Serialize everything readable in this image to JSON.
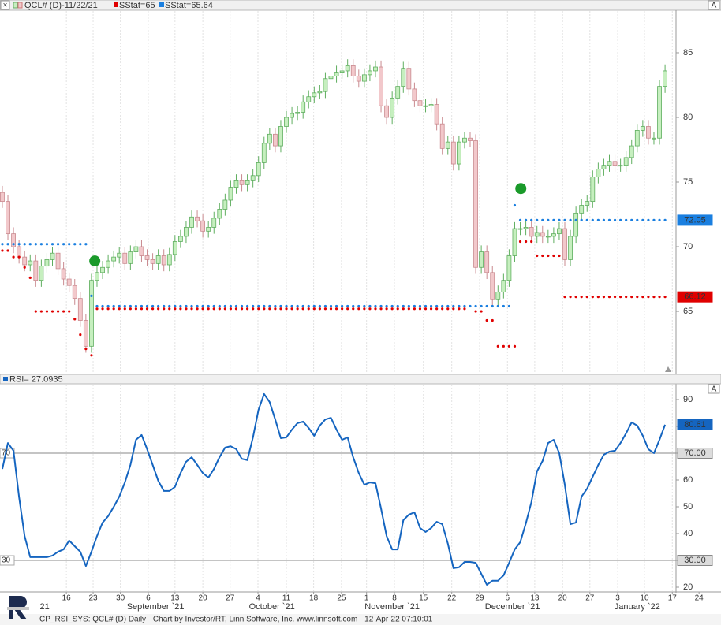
{
  "toolbar": {
    "close": "×",
    "autoscale": "A"
  },
  "footer": "CP_RSI_SYS: QCL# (D) Daily - Chart by Investor/RT, Linn Software, Inc.  www.linnsoft.com - 12-Apr-22 07:10:01",
  "chart_data": [
    {
      "type": "candlestick",
      "title": "QCL# (D)-11/22/21",
      "up_color": "#c6efbf",
      "down_color": "#f2c8cb",
      "grid": true,
      "xlim": [
        -0.42,
        120.97
      ],
      "xticks": [
        {
          "value": 11.5,
          "label": "16"
        },
        {
          "value": 16.3,
          "label": "23"
        },
        {
          "value": 21.2,
          "label": "30"
        },
        {
          "value": 26.2,
          "label": "6"
        },
        {
          "value": 31.0,
          "label": "13"
        },
        {
          "value": 36.0,
          "label": "20"
        },
        {
          "value": 40.9,
          "label": "27"
        },
        {
          "value": 45.9,
          "label": "4"
        },
        {
          "value": 51.0,
          "label": "11"
        },
        {
          "value": 55.9,
          "label": "18"
        },
        {
          "value": 60.9,
          "label": "25"
        },
        {
          "value": 65.4,
          "label": "1"
        },
        {
          "value": 70.4,
          "label": "8"
        },
        {
          "value": 75.6,
          "label": "15"
        },
        {
          "value": 80.7,
          "label": "22"
        },
        {
          "value": 85.7,
          "label": "29"
        },
        {
          "value": 90.7,
          "label": "6"
        },
        {
          "value": 95.6,
          "label": "13"
        },
        {
          "value": 100.6,
          "label": "20"
        },
        {
          "value": 105.5,
          "label": "27"
        },
        {
          "value": 110.5,
          "label": "3"
        },
        {
          "value": 115.3,
          "label": "10"
        },
        {
          "value": 120.3,
          "label": "17"
        },
        {
          "value": 125.1,
          "label": "24"
        }
      ],
      "month_labels": [
        {
          "value": 7.6,
          "label": "21"
        },
        {
          "value": 27.5,
          "label": "September `21"
        },
        {
          "value": 48.4,
          "label": "October `21"
        },
        {
          "value": 70.0,
          "label": "November `21"
        },
        {
          "value": 91.6,
          "label": "December `21"
        },
        {
          "value": 114.0,
          "label": "January `22"
        }
      ],
      "ylim": [
        60.43,
        88.23
      ],
      "yticks": [
        65,
        70,
        75,
        80,
        85
      ],
      "open": [
        74.2,
        73.5,
        71.0,
        70.0,
        69.2,
        68.6,
        68.9,
        67.4,
        68.5,
        69.0,
        69.5,
        68.3,
        67.5,
        67.0,
        66.0,
        64.3,
        62.3,
        67.4,
        68.0,
        68.4,
        68.9,
        69.2,
        69.5,
        68.7,
        69.6,
        70.0,
        69.3,
        69.0,
        68.7,
        69.3,
        68.6,
        69.4,
        70.4,
        70.8,
        71.5,
        72.3,
        72.0,
        71.2,
        71.5,
        72.2,
        72.9,
        73.6,
        74.6,
        75.1,
        74.8,
        75.1,
        75.5,
        76.5,
        78.0,
        78.7,
        77.8,
        79.3,
        80.0,
        80.3,
        80.4,
        81.2,
        81.6,
        81.9,
        82.0,
        83.0,
        83.2,
        83.5,
        83.6,
        84.0,
        83.2,
        82.8,
        83.3,
        83.6,
        83.9,
        80.9,
        80.0,
        81.5,
        82.4,
        83.8,
        82.2,
        81.3,
        80.9,
        80.9,
        81.0,
        79.5,
        77.6,
        78.1,
        76.4,
        78.1,
        78.4,
        78.2,
        68.4,
        69.6,
        68.0,
        65.9,
        66.5,
        67.4,
        69.3,
        71.4,
        71.4,
        71.5,
        70.8,
        71.1,
        70.8,
        70.8,
        71.0,
        71.4,
        69.0,
        70.8,
        72.6,
        73.2,
        73.5,
        75.4,
        76.0,
        76.3,
        76.6,
        76.3,
        76.3,
        76.9,
        77.8,
        79.0,
        79.3,
        78.4,
        78.4,
        82.4
      ],
      "high": [
        74.7,
        74.0,
        71.5,
        70.5,
        69.7,
        69.4,
        69.4,
        69.0,
        69.5,
        70.0,
        70.0,
        68.8,
        68.0,
        67.5,
        66.5,
        64.8,
        67.9,
        68.5,
        68.9,
        69.4,
        69.7,
        70.0,
        70.0,
        70.1,
        70.5,
        70.5,
        69.8,
        69.5,
        69.8,
        69.8,
        69.9,
        70.9,
        71.3,
        72.0,
        72.8,
        72.8,
        72.5,
        72.0,
        72.7,
        73.4,
        74.1,
        75.1,
        75.6,
        75.6,
        75.6,
        76.0,
        77.0,
        78.5,
        79.2,
        79.2,
        79.8,
        80.5,
        80.8,
        80.9,
        81.7,
        82.1,
        82.4,
        82.5,
        83.5,
        83.7,
        84.0,
        84.1,
        84.5,
        84.5,
        83.7,
        83.8,
        84.1,
        84.4,
        84.4,
        81.4,
        82.0,
        82.9,
        84.3,
        84.3,
        82.7,
        81.8,
        81.4,
        81.5,
        81.5,
        80.0,
        78.6,
        78.6,
        78.6,
        78.9,
        78.9,
        78.7,
        70.1,
        70.1,
        68.5,
        67.0,
        67.9,
        69.8,
        71.9,
        71.9,
        72.0,
        72.0,
        71.6,
        71.6,
        71.3,
        71.5,
        71.9,
        71.9,
        71.3,
        73.1,
        73.7,
        74.0,
        75.9,
        76.5,
        76.8,
        77.1,
        77.1,
        76.8,
        77.4,
        78.3,
        79.5,
        79.8,
        79.8,
        78.9,
        82.9,
        84.1
      ],
      "low": [
        73.0,
        70.5,
        69.5,
        68.7,
        68.1,
        68.1,
        66.9,
        66.9,
        68.0,
        68.5,
        67.8,
        67.0,
        66.5,
        65.5,
        63.8,
        61.8,
        61.8,
        66.9,
        67.5,
        67.9,
        68.4,
        68.7,
        68.2,
        68.2,
        69.1,
        68.8,
        68.5,
        68.2,
        68.2,
        68.1,
        68.1,
        68.9,
        69.9,
        70.3,
        71.0,
        71.5,
        70.7,
        70.7,
        71.0,
        71.7,
        72.4,
        73.1,
        74.1,
        74.3,
        74.3,
        74.6,
        75.0,
        76.0,
        77.5,
        77.3,
        77.3,
        78.8,
        79.5,
        79.8,
        79.9,
        80.7,
        81.1,
        81.4,
        81.5,
        82.5,
        82.7,
        83.0,
        83.1,
        82.7,
        82.3,
        82.3,
        82.8,
        83.1,
        80.4,
        79.5,
        79.5,
        81.0,
        81.9,
        81.7,
        80.8,
        80.4,
        80.4,
        80.4,
        79.0,
        77.1,
        77.1,
        75.9,
        75.9,
        77.6,
        77.7,
        67.9,
        67.9,
        67.5,
        65.4,
        65.4,
        66.0,
        66.9,
        68.8,
        70.9,
        70.9,
        70.3,
        70.3,
        70.3,
        70.3,
        70.3,
        70.5,
        68.5,
        68.5,
        70.3,
        72.1,
        72.7,
        73.0,
        74.9,
        75.5,
        75.8,
        75.8,
        75.8,
        75.8,
        76.4,
        77.3,
        78.5,
        77.9,
        77.9,
        77.9,
        81.9
      ],
      "close": [
        73.5,
        71.0,
        70.0,
        69.2,
        68.6,
        68.9,
        67.4,
        68.5,
        69.0,
        69.5,
        68.3,
        67.5,
        67.0,
        66.0,
        64.3,
        62.3,
        67.4,
        68.0,
        68.4,
        68.9,
        69.2,
        69.5,
        68.7,
        69.6,
        70.0,
        69.3,
        69.0,
        68.7,
        69.3,
        68.6,
        69.4,
        70.4,
        70.8,
        71.5,
        72.3,
        72.0,
        71.2,
        71.5,
        72.2,
        72.9,
        73.6,
        74.6,
        75.1,
        74.8,
        75.1,
        75.5,
        76.5,
        78.0,
        78.7,
        77.8,
        79.3,
        80.0,
        80.3,
        80.4,
        81.2,
        81.6,
        81.9,
        82.0,
        83.0,
        83.2,
        83.5,
        83.6,
        84.0,
        83.2,
        82.8,
        83.3,
        83.6,
        83.9,
        80.9,
        80.0,
        81.5,
        82.4,
        83.8,
        82.2,
        81.3,
        80.9,
        80.9,
        81.0,
        79.5,
        77.6,
        78.1,
        76.4,
        78.1,
        78.4,
        78.2,
        68.4,
        69.6,
        68.0,
        65.9,
        66.5,
        67.4,
        69.3,
        71.4,
        71.4,
        71.5,
        70.8,
        71.1,
        70.8,
        70.8,
        71.0,
        71.4,
        69.0,
        70.8,
        72.6,
        73.2,
        73.5,
        75.4,
        76.0,
        76.3,
        76.6,
        76.3,
        76.3,
        76.9,
        77.8,
        79.0,
        79.3,
        78.4,
        78.4,
        82.4,
        83.6
      ],
      "series": [
        {
          "name": "SStat=65",
          "color": "#e00000",
          "values": [
            69.7,
            69.7,
            69.2,
            69.2,
            68.4,
            67.6,
            65.0,
            65.0,
            65.0,
            65.0,
            65.0,
            65.0,
            65.0,
            64.4,
            63.2,
            62.1,
            61.6,
            65.2,
            65.2,
            65.2,
            65.2,
            65.2,
            65.2,
            65.2,
            65.2,
            65.2,
            65.2,
            65.2,
            65.2,
            65.2,
            65.2,
            65.2,
            65.2,
            65.2,
            65.2,
            65.2,
            65.2,
            65.2,
            65.2,
            65.2,
            65.2,
            65.2,
            65.2,
            65.2,
            65.2,
            65.2,
            65.2,
            65.2,
            65.2,
            65.2,
            65.2,
            65.2,
            65.2,
            65.2,
            65.2,
            65.2,
            65.2,
            65.2,
            65.2,
            65.2,
            65.2,
            65.2,
            65.2,
            65.2,
            65.2,
            65.2,
            65.2,
            65.2,
            65.2,
            65.2,
            65.2,
            65.2,
            65.2,
            65.2,
            65.2,
            65.2,
            65.2,
            65.2,
            65.2,
            65.2,
            65.2,
            65.2,
            65.2,
            65.2,
            null,
            65.0,
            65.0,
            64.3,
            64.3,
            62.3,
            62.3,
            62.3,
            62.3,
            70.4,
            70.4,
            70.4,
            69.3,
            69.3,
            69.3,
            69.3,
            69.3,
            66.12,
            66.12,
            66.12,
            66.12,
            66.12,
            66.12,
            66.12,
            66.12,
            66.12,
            66.12,
            66.12,
            66.12,
            66.12,
            66.12,
            66.12,
            66.12,
            66.12,
            66.12,
            66.12
          ]
        },
        {
          "name": "SStat=65.64",
          "color": "#1a7fe0",
          "values": [
            70.2,
            70.2,
            70.2,
            70.2,
            70.2,
            70.2,
            70.2,
            70.2,
            70.2,
            70.2,
            70.2,
            70.2,
            70.2,
            70.2,
            70.2,
            70.2,
            66.2,
            65.4,
            65.4,
            65.4,
            65.4,
            65.4,
            65.4,
            65.4,
            65.4,
            65.4,
            65.4,
            65.4,
            65.4,
            65.4,
            65.4,
            65.4,
            65.4,
            65.4,
            65.4,
            65.4,
            65.4,
            65.4,
            65.4,
            65.4,
            65.4,
            65.4,
            65.4,
            65.4,
            65.4,
            65.4,
            65.4,
            65.4,
            65.4,
            65.4,
            65.4,
            65.4,
            65.4,
            65.4,
            65.4,
            65.4,
            65.4,
            65.4,
            65.4,
            65.4,
            65.4,
            65.4,
            65.4,
            65.4,
            65.4,
            65.4,
            65.4,
            65.4,
            65.4,
            65.4,
            65.4,
            65.4,
            65.4,
            65.4,
            65.4,
            65.4,
            65.4,
            65.4,
            65.4,
            65.4,
            65.4,
            65.4,
            65.4,
            65.4,
            65.4,
            65.4,
            65.4,
            65.4,
            65.4,
            65.4,
            65.4,
            65.4,
            73.2,
            72.05,
            72.05,
            72.05,
            72.05,
            72.05,
            72.05,
            72.05,
            72.05,
            72.05,
            72.05,
            72.05,
            72.05,
            72.05,
            72.05,
            72.05,
            72.05,
            72.05,
            72.05,
            72.05,
            72.05,
            72.05,
            72.05,
            72.05,
            72.05,
            72.05,
            72.05,
            72.05
          ]
        }
      ],
      "signals": {
        "color": "#1a9a2a",
        "x": [
          16.6,
          93.1
        ],
        "y": [
          68.9,
          74.5
        ]
      }
    },
    {
      "type": "line",
      "title": "RSI= 27.0935",
      "color": "#1565c0",
      "ylim": [
        18.53,
        95.59
      ],
      "yticks": [
        20,
        30,
        40,
        50,
        60,
        70,
        80,
        90
      ],
      "levels": [
        {
          "value": 70,
          "label": "70.00"
        },
        {
          "value": 30,
          "label": "30.00"
        }
      ],
      "values": [
        64.1,
        73.8,
        70.9,
        53.8,
        39.1,
        31.2,
        31.2,
        31.2,
        31.2,
        31.8,
        33.2,
        34.1,
        37.4,
        35.3,
        33.2,
        27.9,
        33.2,
        39.1,
        44.1,
        46.5,
        50.0,
        53.8,
        59.1,
        65.6,
        75.0,
        76.8,
        71.5,
        65.6,
        59.7,
        55.9,
        55.9,
        57.4,
        62.6,
        66.8,
        68.5,
        65.6,
        62.6,
        60.9,
        64.1,
        68.5,
        72.1,
        72.6,
        71.5,
        67.9,
        67.4,
        75.9,
        86.2,
        92.1,
        89.1,
        82.6,
        75.6,
        75.9,
        78.8,
        81.2,
        81.8,
        79.4,
        76.5,
        80.3,
        82.6,
        83.2,
        78.8,
        75.0,
        75.9,
        68.5,
        62.6,
        58.2,
        59.1,
        58.8,
        49.4,
        39.1,
        34.1,
        34.1,
        45.0,
        47.1,
        47.9,
        42.1,
        40.6,
        42.1,
        44.4,
        43.5,
        36.2,
        27.1,
        27.4,
        29.4,
        29.4,
        29.1,
        25.0,
        20.9,
        22.4,
        22.4,
        24.4,
        29.1,
        34.1,
        36.8,
        43.8,
        51.8,
        63.2,
        67.1,
        73.8,
        75.0,
        70.0,
        58.2,
        43.5,
        44.1,
        53.8,
        56.8,
        61.2,
        65.6,
        69.4,
        70.6,
        70.9,
        73.8,
        77.4,
        81.5,
        80.3,
        76.5,
        71.5,
        70.0,
        75.0,
        80.61
      ]
    }
  ]
}
